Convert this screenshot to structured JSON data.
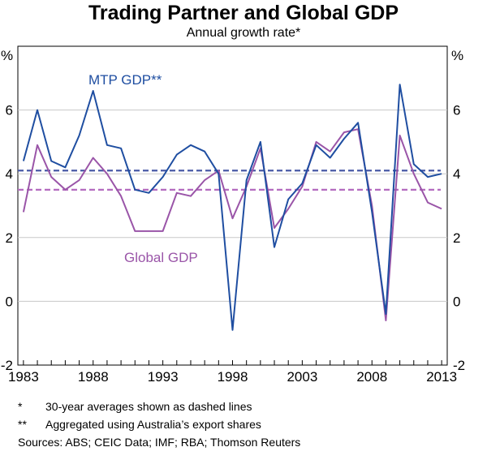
{
  "header": {
    "title": "Trading Partner and Global GDP",
    "subtitle": "Annual growth rate*"
  },
  "footnotes": {
    "note1_mark": "*",
    "note1_text": "30-year averages shown as dashed lines",
    "note2_mark": "**",
    "note2_text": "Aggregated using Australia’s export shares",
    "sources": "Sources:  ABS; CEIC Data; IMF; RBA; Thomson Reuters"
  },
  "colors": {
    "mtp": "#1f4ea1",
    "global": "#9a55a8",
    "mtp_avg": "#4a5aa6",
    "global_avg": "#b46bbf",
    "grid": "#c8c8c8"
  },
  "chart_data": {
    "type": "line",
    "title": "Trading Partner and Global GDP",
    "subtitle": "Annual growth rate*",
    "ylabel_left": "%",
    "ylabel_right": "%",
    "ylim": [
      -2,
      8
    ],
    "yticks": [
      -2,
      0,
      2,
      4,
      6
    ],
    "xlim": [
      1983,
      2013
    ],
    "xticks": [
      1983,
      1988,
      1993,
      1998,
      2003,
      2008,
      2013
    ],
    "grid": true,
    "x": [
      1983,
      1984,
      1985,
      1986,
      1987,
      1988,
      1989,
      1990,
      1991,
      1992,
      1993,
      1994,
      1995,
      1996,
      1997,
      1998,
      1999,
      2000,
      2001,
      2002,
      2003,
      2004,
      2005,
      2006,
      2007,
      2008,
      2009,
      2010,
      2011,
      2012,
      2013
    ],
    "series": [
      {
        "name": "MTP GDP**",
        "color": "#1f4ea1",
        "values": [
          4.4,
          6.0,
          4.4,
          4.2,
          5.2,
          6.6,
          4.9,
          4.8,
          3.5,
          3.4,
          3.9,
          4.6,
          4.9,
          4.7,
          4.0,
          -0.9,
          3.8,
          5.0,
          1.7,
          3.2,
          3.7,
          4.9,
          4.5,
          5.1,
          5.6,
          2.8,
          -0.4,
          6.8,
          4.3,
          3.9,
          4.0
        ]
      },
      {
        "name": "Global GDP",
        "color": "#9a55a8",
        "values": [
          2.8,
          4.9,
          3.9,
          3.5,
          3.8,
          4.5,
          4.0,
          3.3,
          2.2,
          2.2,
          2.2,
          3.4,
          3.3,
          3.8,
          4.1,
          2.6,
          3.6,
          4.8,
          2.3,
          2.9,
          3.6,
          5.0,
          4.7,
          5.3,
          5.4,
          3.0,
          -0.6,
          5.2,
          4.0,
          3.1,
          2.9
        ]
      }
    ],
    "averages": [
      {
        "name": "MTP GDP** 30-year average",
        "value": 4.1
      },
      {
        "name": "Global GDP 30-year average",
        "value": 3.5
      }
    ]
  }
}
